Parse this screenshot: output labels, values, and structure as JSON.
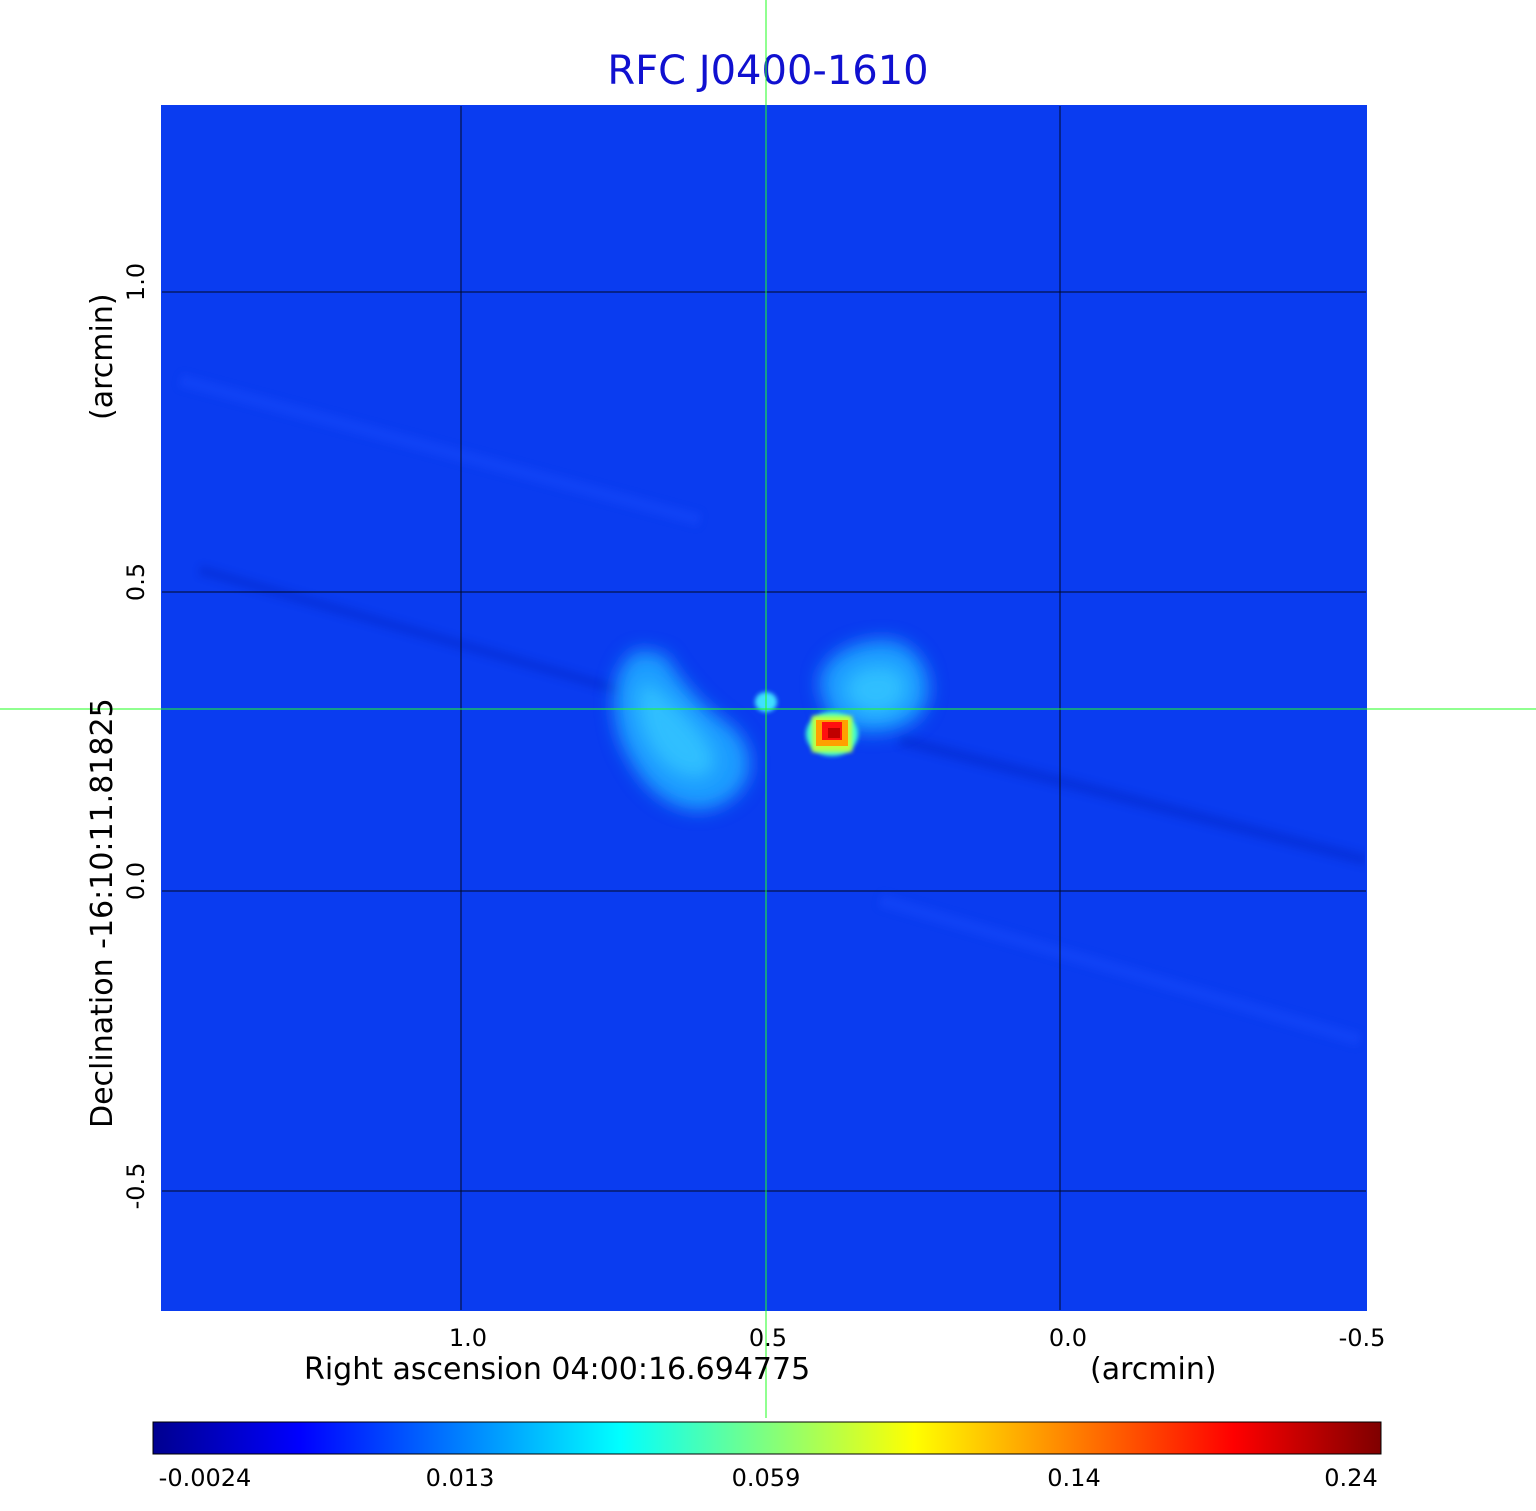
{
  "title": "RFC J0400-1610",
  "x_axis": {
    "label": "Right ascension  04:00:16.694775",
    "unit": "(arcmin)",
    "ticks": [
      "1.0",
      "0.5",
      "0.0",
      "-0.5"
    ]
  },
  "y_axis": {
    "label": "Declination  -16:10:11.81825",
    "unit": "(arcmin)",
    "ticks": [
      "1.0",
      "0.5",
      "0.0",
      "-0.5"
    ]
  },
  "colorbar": {
    "ticks": [
      "-0.0024",
      "0.013",
      "0.059",
      "0.14",
      "0.24"
    ],
    "colors": [
      "#00008f",
      "#0000ff",
      "#007fff",
      "#00ffff",
      "#7fff7f",
      "#ffff00",
      "#ff7f00",
      "#ff0000",
      "#7f0000"
    ]
  },
  "colors": {
    "background": "#0a3cf0",
    "title": "#1010d0",
    "crosshair": "#22ff22",
    "grid": "#000000"
  }
}
